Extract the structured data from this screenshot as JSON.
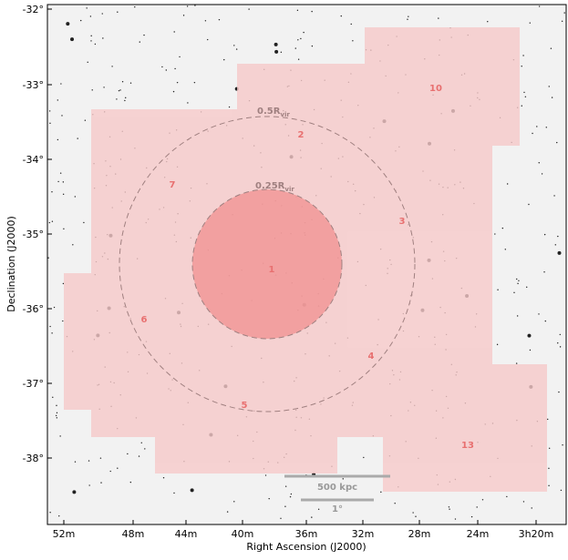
{
  "axes": {
    "xlabel": "Right Ascension (J2000)",
    "ylabel": "Declination (J2000)",
    "xticks": [
      "52m",
      "48m",
      "44m",
      "40m",
      "36m",
      "32m",
      "28m",
      "24m",
      "3h20m"
    ],
    "yticks": [
      "-32°",
      "-33°",
      "-34°",
      "-35°",
      "-36°",
      "-37°",
      "-38°"
    ]
  },
  "circles": [
    {
      "main": "0.5R",
      "sub": "vir"
    },
    {
      "main": "0.25R",
      "sub": "vir"
    }
  ],
  "fields": [
    "1",
    "2",
    "3",
    "4",
    "5",
    "6",
    "7",
    "10",
    "13"
  ],
  "scale_bars": [
    "500 kpc",
    "1°"
  ]
}
